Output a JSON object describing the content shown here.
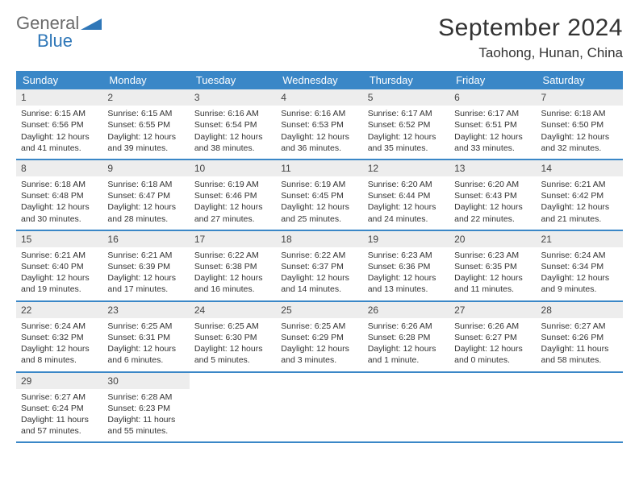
{
  "brand": {
    "word1": "General",
    "word2": "Blue"
  },
  "title": "September 2024",
  "location": "Taohong, Hunan, China",
  "colors": {
    "header_bg": "#3a87c7",
    "header_text": "#ffffff",
    "daynum_bg": "#ededed",
    "rule": "#3a87c7",
    "logo_gray": "#6a6a6a",
    "logo_blue": "#2f77b8"
  },
  "dayNames": [
    "Sunday",
    "Monday",
    "Tuesday",
    "Wednesday",
    "Thursday",
    "Friday",
    "Saturday"
  ],
  "weeks": [
    [
      {
        "n": "1",
        "sr": "Sunrise: 6:15 AM",
        "ss": "Sunset: 6:56 PM",
        "dl": "Daylight: 12 hours and 41 minutes."
      },
      {
        "n": "2",
        "sr": "Sunrise: 6:15 AM",
        "ss": "Sunset: 6:55 PM",
        "dl": "Daylight: 12 hours and 39 minutes."
      },
      {
        "n": "3",
        "sr": "Sunrise: 6:16 AM",
        "ss": "Sunset: 6:54 PM",
        "dl": "Daylight: 12 hours and 38 minutes."
      },
      {
        "n": "4",
        "sr": "Sunrise: 6:16 AM",
        "ss": "Sunset: 6:53 PM",
        "dl": "Daylight: 12 hours and 36 minutes."
      },
      {
        "n": "5",
        "sr": "Sunrise: 6:17 AM",
        "ss": "Sunset: 6:52 PM",
        "dl": "Daylight: 12 hours and 35 minutes."
      },
      {
        "n": "6",
        "sr": "Sunrise: 6:17 AM",
        "ss": "Sunset: 6:51 PM",
        "dl": "Daylight: 12 hours and 33 minutes."
      },
      {
        "n": "7",
        "sr": "Sunrise: 6:18 AM",
        "ss": "Sunset: 6:50 PM",
        "dl": "Daylight: 12 hours and 32 minutes."
      }
    ],
    [
      {
        "n": "8",
        "sr": "Sunrise: 6:18 AM",
        "ss": "Sunset: 6:48 PM",
        "dl": "Daylight: 12 hours and 30 minutes."
      },
      {
        "n": "9",
        "sr": "Sunrise: 6:18 AM",
        "ss": "Sunset: 6:47 PM",
        "dl": "Daylight: 12 hours and 28 minutes."
      },
      {
        "n": "10",
        "sr": "Sunrise: 6:19 AM",
        "ss": "Sunset: 6:46 PM",
        "dl": "Daylight: 12 hours and 27 minutes."
      },
      {
        "n": "11",
        "sr": "Sunrise: 6:19 AM",
        "ss": "Sunset: 6:45 PM",
        "dl": "Daylight: 12 hours and 25 minutes."
      },
      {
        "n": "12",
        "sr": "Sunrise: 6:20 AM",
        "ss": "Sunset: 6:44 PM",
        "dl": "Daylight: 12 hours and 24 minutes."
      },
      {
        "n": "13",
        "sr": "Sunrise: 6:20 AM",
        "ss": "Sunset: 6:43 PM",
        "dl": "Daylight: 12 hours and 22 minutes."
      },
      {
        "n": "14",
        "sr": "Sunrise: 6:21 AM",
        "ss": "Sunset: 6:42 PM",
        "dl": "Daylight: 12 hours and 21 minutes."
      }
    ],
    [
      {
        "n": "15",
        "sr": "Sunrise: 6:21 AM",
        "ss": "Sunset: 6:40 PM",
        "dl": "Daylight: 12 hours and 19 minutes."
      },
      {
        "n": "16",
        "sr": "Sunrise: 6:21 AM",
        "ss": "Sunset: 6:39 PM",
        "dl": "Daylight: 12 hours and 17 minutes."
      },
      {
        "n": "17",
        "sr": "Sunrise: 6:22 AM",
        "ss": "Sunset: 6:38 PM",
        "dl": "Daylight: 12 hours and 16 minutes."
      },
      {
        "n": "18",
        "sr": "Sunrise: 6:22 AM",
        "ss": "Sunset: 6:37 PM",
        "dl": "Daylight: 12 hours and 14 minutes."
      },
      {
        "n": "19",
        "sr": "Sunrise: 6:23 AM",
        "ss": "Sunset: 6:36 PM",
        "dl": "Daylight: 12 hours and 13 minutes."
      },
      {
        "n": "20",
        "sr": "Sunrise: 6:23 AM",
        "ss": "Sunset: 6:35 PM",
        "dl": "Daylight: 12 hours and 11 minutes."
      },
      {
        "n": "21",
        "sr": "Sunrise: 6:24 AM",
        "ss": "Sunset: 6:34 PM",
        "dl": "Daylight: 12 hours and 9 minutes."
      }
    ],
    [
      {
        "n": "22",
        "sr": "Sunrise: 6:24 AM",
        "ss": "Sunset: 6:32 PM",
        "dl": "Daylight: 12 hours and 8 minutes."
      },
      {
        "n": "23",
        "sr": "Sunrise: 6:25 AM",
        "ss": "Sunset: 6:31 PM",
        "dl": "Daylight: 12 hours and 6 minutes."
      },
      {
        "n": "24",
        "sr": "Sunrise: 6:25 AM",
        "ss": "Sunset: 6:30 PM",
        "dl": "Daylight: 12 hours and 5 minutes."
      },
      {
        "n": "25",
        "sr": "Sunrise: 6:25 AM",
        "ss": "Sunset: 6:29 PM",
        "dl": "Daylight: 12 hours and 3 minutes."
      },
      {
        "n": "26",
        "sr": "Sunrise: 6:26 AM",
        "ss": "Sunset: 6:28 PM",
        "dl": "Daylight: 12 hours and 1 minute."
      },
      {
        "n": "27",
        "sr": "Sunrise: 6:26 AM",
        "ss": "Sunset: 6:27 PM",
        "dl": "Daylight: 12 hours and 0 minutes."
      },
      {
        "n": "28",
        "sr": "Sunrise: 6:27 AM",
        "ss": "Sunset: 6:26 PM",
        "dl": "Daylight: 11 hours and 58 minutes."
      }
    ],
    [
      {
        "n": "29",
        "sr": "Sunrise: 6:27 AM",
        "ss": "Sunset: 6:24 PM",
        "dl": "Daylight: 11 hours and 57 minutes."
      },
      {
        "n": "30",
        "sr": "Sunrise: 6:28 AM",
        "ss": "Sunset: 6:23 PM",
        "dl": "Daylight: 11 hours and 55 minutes."
      },
      null,
      null,
      null,
      null,
      null
    ]
  ]
}
